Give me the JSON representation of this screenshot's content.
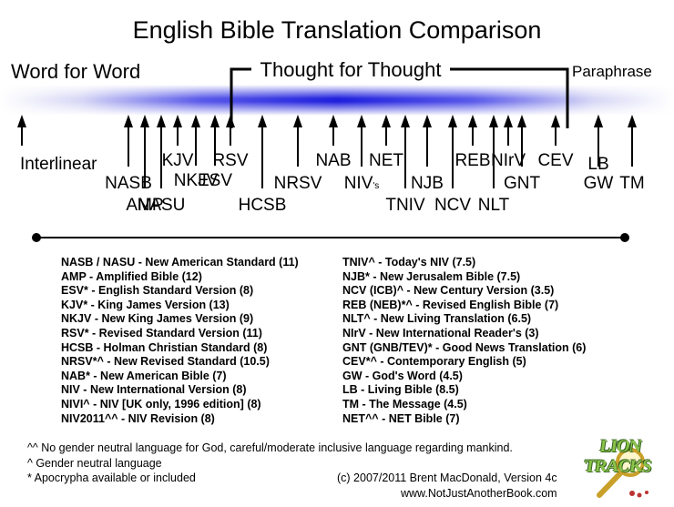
{
  "title": "English Bible Translation Comparison",
  "scale": {
    "left_label": "Word for Word",
    "middle_label": "Thought for Thought",
    "right_label": "Paraphrase"
  },
  "translations": [
    {
      "name": "Interlinear",
      "position": 0,
      "row": 1
    },
    {
      "name": "NASB",
      "position": 1,
      "row": 2
    },
    {
      "name": "AMP",
      "position": 2,
      "row": 3
    },
    {
      "name": "NASU",
      "position": 3,
      "row": 3
    },
    {
      "name": "KJV",
      "position": 4,
      "row": 0
    },
    {
      "name": "NKJV",
      "position": 5,
      "row": 1
    },
    {
      "name": "ESV",
      "position": 6,
      "row": 2
    },
    {
      "name": "RSV",
      "position": 7,
      "row": 0
    },
    {
      "name": "HCSB",
      "position": 8,
      "row": 3
    },
    {
      "name": "NRSV",
      "position": 9,
      "row": 2
    },
    {
      "name": "NAB",
      "position": 10,
      "row": 0
    },
    {
      "name": "NIV",
      "sub": "'s",
      "position": 11,
      "row": 2
    },
    {
      "name": "NET",
      "position": 12,
      "row": 0
    },
    {
      "name": "TNIV",
      "position": 13,
      "row": 3
    },
    {
      "name": "NJB",
      "position": 14,
      "row": 2
    },
    {
      "name": "NCV",
      "position": 15,
      "row": 3
    },
    {
      "name": "REB",
      "position": 16,
      "row": 0
    },
    {
      "name": "NLT",
      "position": 17,
      "row": 3
    },
    {
      "name": "NIrV",
      "position": 18,
      "row": 0
    },
    {
      "name": "GNT",
      "position": 19,
      "row": 2
    },
    {
      "name": "CEV",
      "position": 20,
      "row": 0
    },
    {
      "name": "GW",
      "position": 21,
      "row": 2
    },
    {
      "name": "LB",
      "position": 22,
      "row": 1
    },
    {
      "name": "TM",
      "position": 23,
      "row": 2
    }
  ],
  "legend_left": [
    "NASB / NASU - New American Standard (11)",
    "AMP - Amplified Bible (12)",
    "ESV* - English Standard Version (8)",
    "KJV* - King James Version (13)",
    "NKJV - New King James Version (9)",
    "RSV* - Revised Standard Version (11)",
    "HCSB - Holman Christian Standard (8)",
    "NRSV*^ - New Revised Standard (10.5)",
    "NAB* - New American Bible (7)",
    "NIV - New International Version (8)",
    "NIVI^ - NIV [UK only, 1996 edition] (8)",
    "NIV2011^^ - NIV Revision (8)"
  ],
  "legend_right": [
    "TNIV^ - Today's NIV (7.5)",
    "NJB* - New Jerusalem Bible (7.5)",
    "NCV (ICB)^ - New Century Version (3.5)",
    "REB (NEB)*^ - Revised English Bible (7)",
    "NLT^ - New Living Translation (6.5)",
    "NIrV - New International Reader's (3)",
    "GNT (GNB/TEV)* - Good News Translation (6)",
    "CEV*^ - Contemporary English (5)",
    "GW - God's Word (4.5)",
    "LB - Living Bible (8.5)",
    "TM - The Message (4.5)",
    "NET^^ - NET Bible (7)"
  ],
  "notes": [
    "^^ No gender neutral language for God, careful/moderate inclusive language regarding mankind.",
    "^ Gender neutral language",
    "* Apocrypha available or included"
  ],
  "credit": {
    "line1": "(c) 2007/2011 Brent MacDonald, Version 4c",
    "line2": "www.NotJustAnotherBook.com"
  },
  "logo": {
    "text": "LION TRACKS"
  },
  "colors": {
    "band": "#2a2ae0",
    "ink": "#000000",
    "logo_green": "#8BC34A"
  }
}
